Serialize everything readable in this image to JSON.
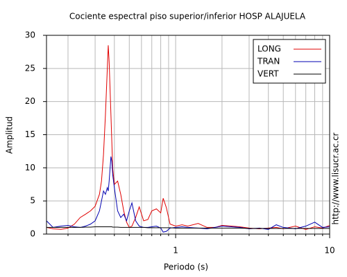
{
  "chart_data": {
    "type": "line",
    "title": "Cociente espectral piso superior/inferior  HOSP ALAJUELA",
    "xlabel": "Periodo (s)",
    "ylabel": "Amplitud",
    "annotation": "http://www.lisucr.ac.cr",
    "x": [
      0.145,
      0.16,
      0.18,
      0.2,
      0.22,
      0.24,
      0.26,
      0.28,
      0.3,
      0.32,
      0.33,
      0.34,
      0.35,
      0.36,
      0.365,
      0.37,
      0.38,
      0.385,
      0.39,
      0.4,
      0.42,
      0.44,
      0.46,
      0.48,
      0.5,
      0.52,
      0.55,
      0.58,
      0.62,
      0.66,
      0.7,
      0.75,
      0.8,
      0.83,
      0.87,
      0.92,
      1.0,
      1.1,
      1.2,
      1.4,
      1.6,
      1.8,
      2.0,
      2.3,
      2.6,
      3.0,
      3.5,
      4.0,
      4.5,
      5,
      6,
      7,
      8,
      9,
      10
    ],
    "series": [
      {
        "name": "LONG",
        "color": "#e00000",
        "values": [
          1.0,
          0.8,
          0.7,
          0.9,
          1.5,
          2.5,
          3.0,
          3.5,
          4.2,
          6,
          8,
          12,
          18,
          25,
          28.5,
          26,
          18,
          14,
          10,
          7.5,
          8,
          6,
          3.5,
          1.8,
          1.0,
          1.2,
          2.5,
          4.1,
          2.0,
          2.2,
          3.5,
          3.8,
          3.2,
          5.4,
          4,
          1.5,
          1.2,
          1.4,
          1.2,
          1.6,
          1.0,
          1.0,
          1.3,
          1.2,
          1.1,
          0.9,
          0.8,
          0.9,
          1.0,
          0.8,
          1.2,
          0.7,
          1.1,
          0.9,
          1.3
        ]
      },
      {
        "name": "TRAN",
        "color": "#0000b0",
        "values": [
          2.0,
          1.0,
          1.2,
          1.3,
          1.1,
          1.0,
          1.2,
          1.5,
          2.0,
          3.5,
          5,
          6.5,
          6,
          7,
          6.5,
          8,
          11.7,
          11,
          9,
          7,
          3.5,
          2.5,
          3,
          2,
          3.5,
          4.7,
          2.0,
          1.2,
          1.0,
          1.0,
          1.1,
          1.2,
          0.9,
          0.3,
          0.4,
          0.9,
          1.0,
          1.1,
          1.0,
          0.9,
          0.8,
          1.0,
          1.2,
          1.1,
          1.0,
          0.8,
          0.9,
          0.7,
          1.4,
          1.0,
          0.8,
          1.2,
          1.8,
          1.0,
          1.1
        ]
      },
      {
        "name": "VERT",
        "color": "#000000",
        "values": [
          1.0,
          1.0,
          1.0,
          1.0,
          1.0,
          1.0,
          1.05,
          1.05,
          1.1,
          1.1,
          1.1,
          1.1,
          1.1,
          1.1,
          1.1,
          1.1,
          1.1,
          1.1,
          1.05,
          1.05,
          1.05,
          1.0,
          1.0,
          1.0,
          1.0,
          1.0,
          1.0,
          1.0,
          1.0,
          0.95,
          0.95,
          0.95,
          0.95,
          0.95,
          0.95,
          0.95,
          0.9,
          0.9,
          0.9,
          0.9,
          0.9,
          0.9,
          0.9,
          0.9,
          0.9,
          0.85,
          0.85,
          0.85,
          0.85,
          0.85,
          0.85,
          0.85,
          0.85,
          0.85,
          0.85
        ]
      }
    ],
    "xlim": [
      0.145,
      10
    ],
    "ylim": [
      0,
      30
    ],
    "xticks": [
      1,
      10
    ],
    "x_minor_ticks": [
      0.2,
      0.3,
      0.4,
      0.5,
      0.6,
      0.7,
      0.8,
      0.9,
      2,
      3,
      4,
      5,
      6,
      7,
      8,
      9
    ],
    "yticks": [
      0,
      5,
      10,
      15,
      20,
      25,
      30
    ],
    "log_x": true,
    "grid": true,
    "legend": "upper-right"
  }
}
